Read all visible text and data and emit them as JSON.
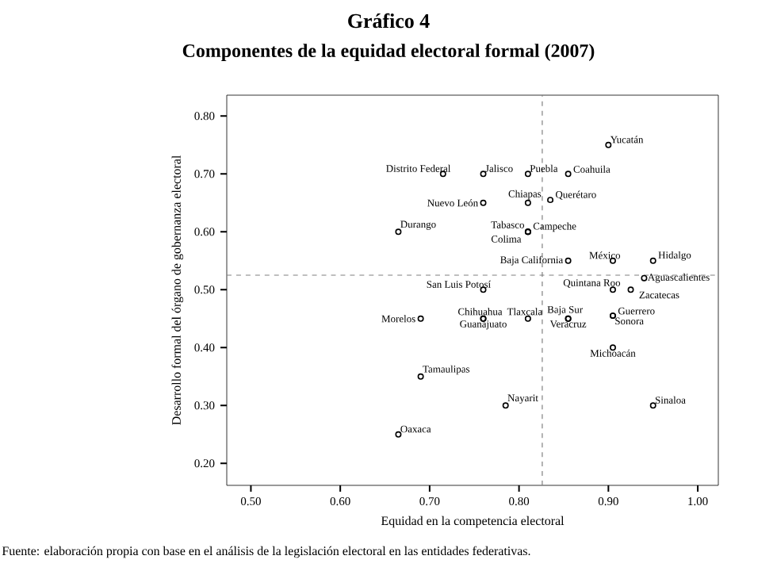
{
  "chart_data": {
    "type": "scatter",
    "title": "Gráfico 4",
    "subtitle": "Componentes de la equidad electoral formal (2007)",
    "xlabel": "Equidad en la competencia electoral",
    "ylabel": "Desarrollo formal del órgano de gobernanza electoral",
    "series": [
      {
        "color": "#000000",
        "marker": "circle",
        "x": [
          0.9,
          0.715,
          0.76,
          0.81,
          0.855,
          0.76,
          0.81,
          0.835,
          0.665,
          0.81,
          0.81,
          0.81,
          0.855,
          0.905,
          0.95,
          0.905,
          0.925,
          0.94,
          0.76,
          0.69,
          0.76,
          0.81,
          0.76,
          0.855,
          0.855,
          0.905,
          0.905,
          0.905,
          0.69,
          0.785,
          0.95,
          0.665
        ],
        "values": [
          0.75,
          0.7,
          0.7,
          0.7,
          0.7,
          0.65,
          0.65,
          0.655,
          0.6,
          0.6,
          0.6,
          0.6,
          0.55,
          0.55,
          0.55,
          0.5,
          0.5,
          0.52,
          0.5,
          0.45,
          0.45,
          0.45,
          0.45,
          0.45,
          0.45,
          0.455,
          0.455,
          0.4,
          0.35,
          0.3,
          0.3,
          0.25
        ]
      }
    ],
    "xlim": [
      0.473,
      1.023
    ],
    "ylim": [
      0.162,
      0.836
    ],
    "xticks": [
      {
        "value": 0.5,
        "label": "0.50"
      },
      {
        "value": 0.6,
        "label": "0.60"
      },
      {
        "value": 0.7,
        "label": "0.70"
      },
      {
        "value": 0.8,
        "label": "0.80"
      },
      {
        "value": 0.9,
        "label": "0.90"
      },
      {
        "value": 1.0,
        "label": "1.00"
      }
    ],
    "yticks": [
      {
        "value": 0.2,
        "label": "0.20"
      },
      {
        "value": 0.3,
        "label": "0.30"
      },
      {
        "value": 0.4,
        "label": "0.40"
      },
      {
        "value": 0.5,
        "label": "0.50"
      },
      {
        "value": 0.6,
        "label": "0.60"
      },
      {
        "value": 0.7,
        "label": "0.70"
      },
      {
        "value": 0.8,
        "label": "0.80"
      }
    ],
    "ref_lines": [
      {
        "axis": "x",
        "value": 0.826,
        "color": "#808080",
        "line_style": "dashed"
      },
      {
        "axis": "y",
        "value": 0.525,
        "color": "#808080",
        "line_style": "dashed"
      }
    ],
    "annotations": [
      {
        "text": "Yucatán",
        "x": 0.9,
        "y": 0.75
      },
      {
        "text": "Distrito Federal",
        "x": 0.715,
        "y": 0.7
      },
      {
        "text": "Jalisco",
        "x": 0.76,
        "y": 0.7
      },
      {
        "text": "Puebla",
        "x": 0.81,
        "y": 0.7
      },
      {
        "text": "Coahuila",
        "x": 0.855,
        "y": 0.7
      },
      {
        "text": "Nuevo León",
        "x": 0.76,
        "y": 0.65
      },
      {
        "text": "Chiapas",
        "x": 0.81,
        "y": 0.65
      },
      {
        "text": "Querétaro",
        "x": 0.835,
        "y": 0.655
      },
      {
        "text": "Durango",
        "x": 0.665,
        "y": 0.6
      },
      {
        "text": "Tabasco",
        "x": 0.81,
        "y": 0.6
      },
      {
        "text": "Campeche",
        "x": 0.81,
        "y": 0.6
      },
      {
        "text": "Colima",
        "x": 0.81,
        "y": 0.6
      },
      {
        "text": "Baja California",
        "x": 0.855,
        "y": 0.55
      },
      {
        "text": "México",
        "x": 0.905,
        "y": 0.55
      },
      {
        "text": "Hidalgo",
        "x": 0.95,
        "y": 0.55
      },
      {
        "text": "Quintana Roo",
        "x": 0.905,
        "y": 0.5
      },
      {
        "text": "Aguascalientes",
        "x": 0.94,
        "y": 0.52
      },
      {
        "text": "Zacatecas",
        "x": 0.925,
        "y": 0.5
      },
      {
        "text": "San Luis Potosí",
        "x": 0.76,
        "y": 0.5
      },
      {
        "text": "Morelos",
        "x": 0.69,
        "y": 0.45
      },
      {
        "text": "Chihuahua",
        "x": 0.76,
        "y": 0.45
      },
      {
        "text": "Tlaxcala",
        "x": 0.81,
        "y": 0.45
      },
      {
        "text": "Guanajuato",
        "x": 0.76,
        "y": 0.45
      },
      {
        "text": "Baja Sur",
        "x": 0.855,
        "y": 0.45
      },
      {
        "text": "Veracruz",
        "x": 0.855,
        "y": 0.45
      },
      {
        "text": "Guerrero",
        "x": 0.905,
        "y": 0.455
      },
      {
        "text": "Sonora",
        "x": 0.905,
        "y": 0.455
      },
      {
        "text": "Michoacán",
        "x": 0.905,
        "y": 0.4
      },
      {
        "text": "Tamaulipas",
        "x": 0.69,
        "y": 0.35
      },
      {
        "text": "Nayarit",
        "x": 0.785,
        "y": 0.3
      },
      {
        "text": "Sinaloa",
        "x": 0.95,
        "y": 0.3
      },
      {
        "text": "Oaxaca",
        "x": 0.665,
        "y": 0.25
      },
      "Fuente: elaboración propia con base en el análisis de la legislación electoral en las entidades federativas."
    ]
  }
}
